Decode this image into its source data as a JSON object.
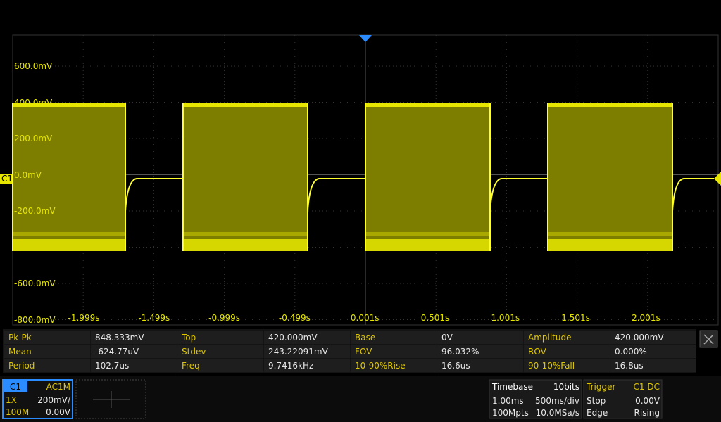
{
  "plot": {
    "channel_marker": "C1",
    "y_labels": [
      "600.0mV",
      "400.0mV",
      "200.0mV",
      "0.0mV",
      "-200.0mV",
      "-600.0mV",
      "-800.0mV"
    ],
    "x_labels": [
      "-1.999s",
      "-1.499s",
      "-0.999s",
      "-0.499s",
      "0.001s",
      "0.501s",
      "1.001s",
      "1.501s",
      "2.001s"
    ]
  },
  "measurements": {
    "rows": [
      [
        [
          "Pk-Pk",
          "848.333mV"
        ],
        [
          "Top",
          "420.000mV"
        ],
        [
          "Base",
          "0V"
        ],
        [
          "Amplitude",
          "420.000mV"
        ]
      ],
      [
        [
          "Mean",
          "-624.77uV"
        ],
        [
          "Stdev",
          "243.22091mV"
        ],
        [
          "FOV",
          "96.032%"
        ],
        [
          "ROV",
          "0.000%"
        ]
      ],
      [
        [
          "Period",
          "102.7us"
        ],
        [
          "Freq",
          "9.7416kHz"
        ],
        [
          "10-90%Rise",
          "16.6us"
        ],
        [
          "90-10%Fall",
          "16.8us"
        ]
      ]
    ]
  },
  "channel": {
    "name": "C1",
    "coupling": "AC1M",
    "probe": "1X",
    "scale": "200mV/",
    "bandwidth": "100M",
    "offset": "0.00V"
  },
  "timebase": {
    "title": "Timebase",
    "bits": "10bits",
    "delay": "1.00ms",
    "scale": "500ms/div",
    "depth": "100Mpts",
    "rate": "10.0MSa/s"
  },
  "trigger": {
    "title": "Trigger",
    "source": "C1 DC",
    "state": "Stop",
    "level": "0.00V",
    "type": "Edge",
    "slope": "Rising"
  }
}
